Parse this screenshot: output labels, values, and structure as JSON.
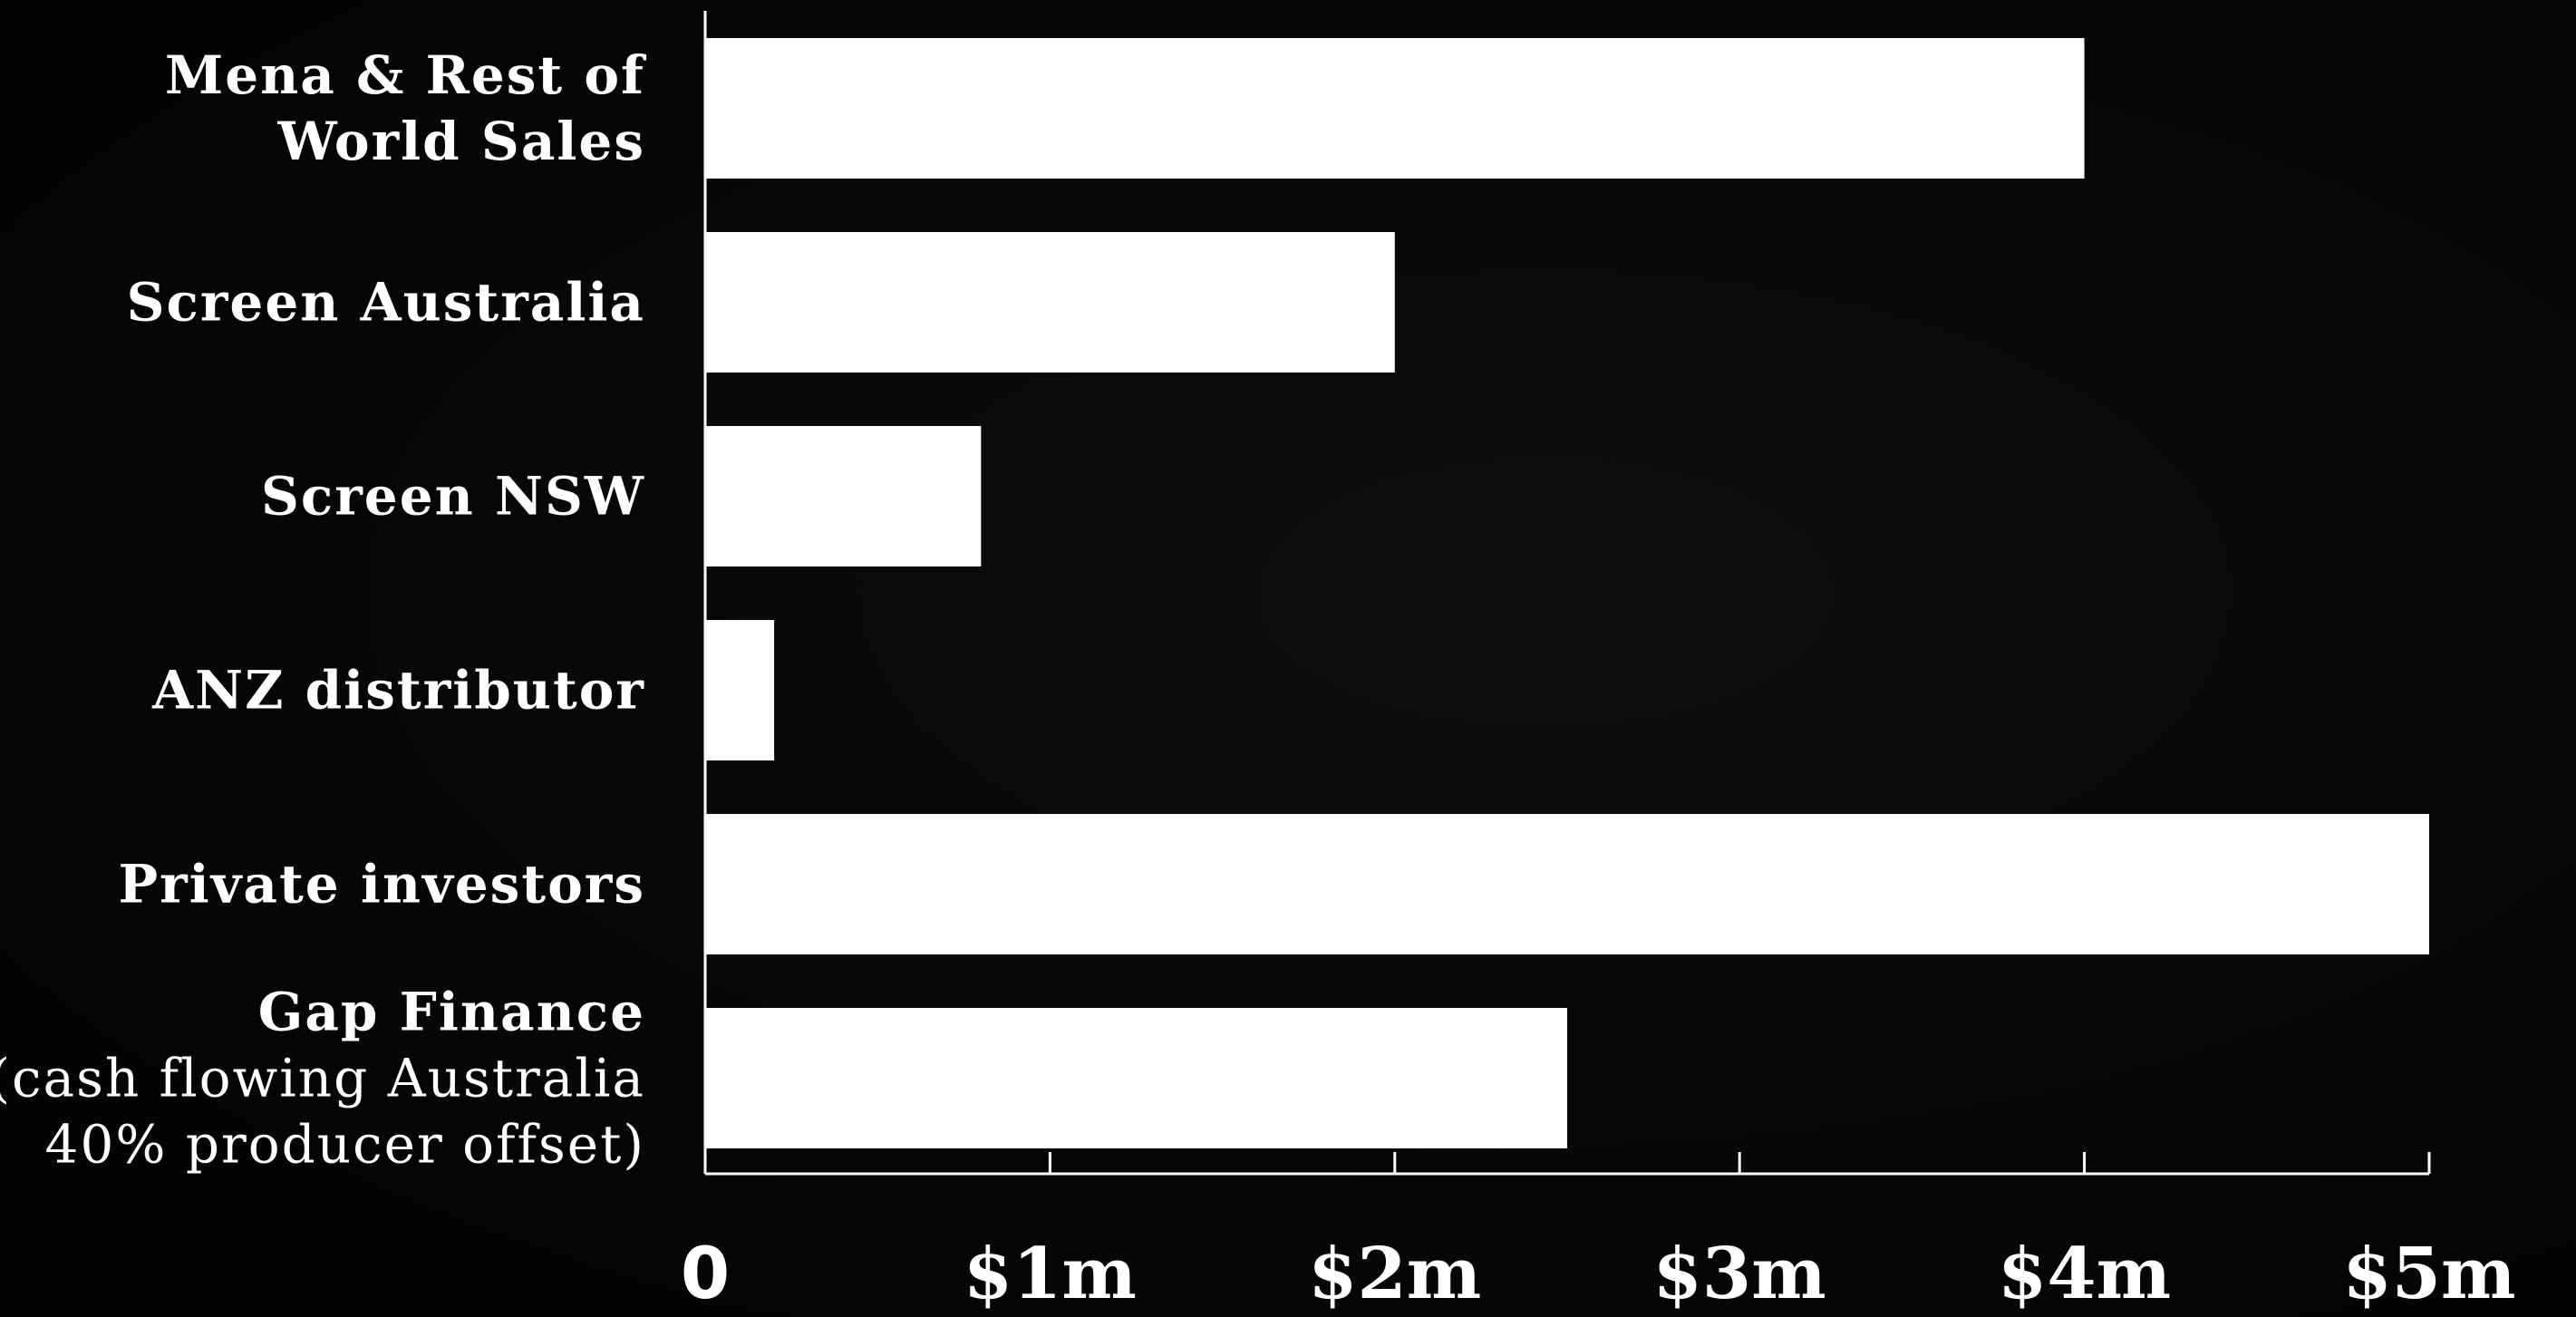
{
  "chart_data": {
    "type": "bar",
    "orientation": "horizontal",
    "categories": [
      [
        "Mena & Rest of",
        "World Sales"
      ],
      [
        "Screen Australia"
      ],
      [
        "Screen NSW"
      ],
      [
        "ANZ distributor"
      ],
      [
        "Private investors"
      ],
      [
        "Gap Finance",
        "(cash flowing Australia",
        "40% producer offset)"
      ]
    ],
    "category_bold_lines": [
      2,
      1,
      1,
      1,
      1,
      1
    ],
    "values": [
      4.0,
      2.0,
      0.8,
      0.2,
      5.0,
      2.5
    ],
    "xlim": [
      0,
      5
    ],
    "x_ticks": [
      0,
      1,
      2,
      3,
      4,
      5
    ],
    "x_tick_labels": [
      "0",
      "$1m",
      "$2m",
      "$3m",
      "$4m",
      "$5m"
    ],
    "title": "",
    "xlabel": "",
    "ylabel": "",
    "grid": false,
    "legend": "none",
    "bar_color": "#ffffff",
    "background_color": "#050505",
    "text_color": "#ffffff"
  }
}
